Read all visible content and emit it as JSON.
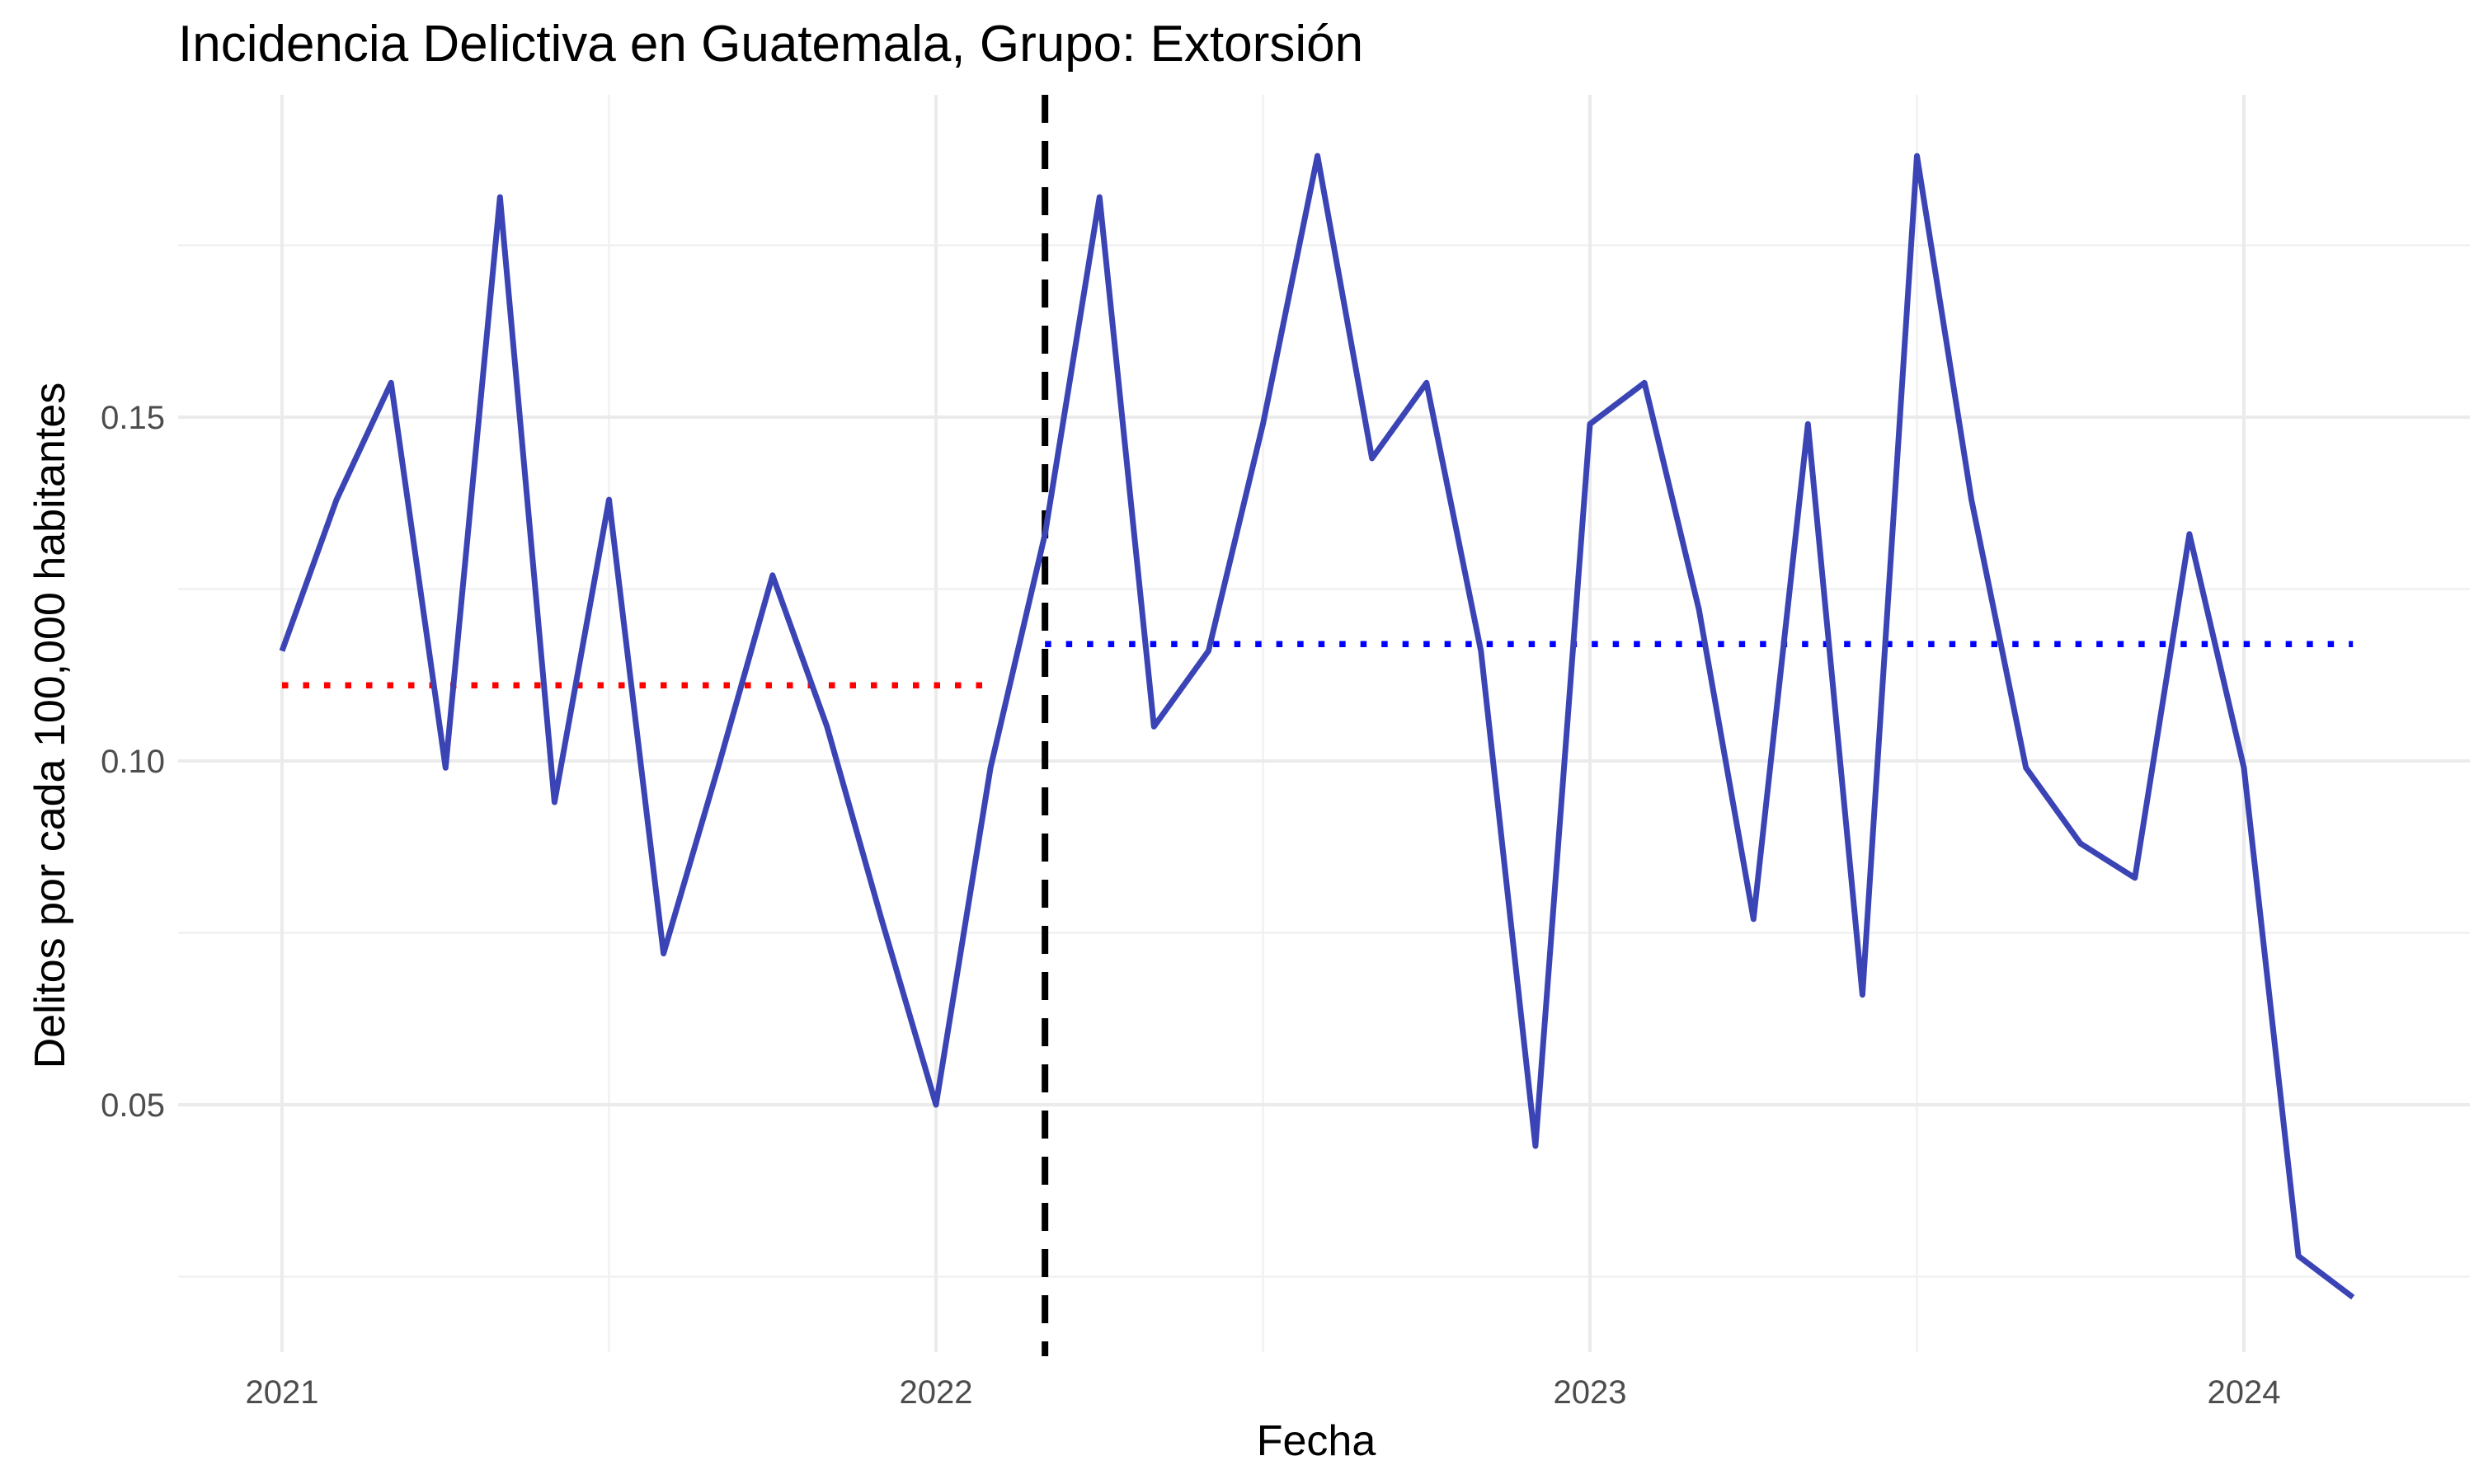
{
  "chart_data": {
    "type": "line",
    "title": "Incidencia Delictiva en Guatemala, Grupo: Extorsión",
    "xlabel": "Fecha",
    "ylabel": "Delitos por cada 100,000 habitantes",
    "x_ticks": [
      "2021",
      "2022",
      "2023",
      "2024"
    ],
    "y_ticks": [
      "0.05",
      "0.10",
      "0.15"
    ],
    "xlim": [
      "2020-10-15",
      "2024-06-15"
    ],
    "ylim": [
      0.015,
      0.2
    ],
    "grid": true,
    "legend": "none",
    "series": [
      {
        "color": "#3B44B5",
        "points": [
          {
            "x": "2021-01",
            "y": 0.116
          },
          {
            "x": "2021-02",
            "y": 0.138
          },
          {
            "x": "2021-03",
            "y": 0.155
          },
          {
            "x": "2021-04",
            "y": 0.099
          },
          {
            "x": "2021-05",
            "y": 0.182
          },
          {
            "x": "2021-06",
            "y": 0.094
          },
          {
            "x": "2021-07",
            "y": 0.138
          },
          {
            "x": "2021-08",
            "y": 0.072
          },
          {
            "x": "2021-09",
            "y": 0.099
          },
          {
            "x": "2021-10",
            "y": 0.127
          },
          {
            "x": "2021-11",
            "y": 0.105
          },
          {
            "x": "2021-12",
            "y": 0.077
          },
          {
            "x": "2022-01",
            "y": 0.05
          },
          {
            "x": "2022-02",
            "y": 0.099
          },
          {
            "x": "2022-03",
            "y": 0.133
          },
          {
            "x": "2022-04",
            "y": 0.182
          },
          {
            "x": "2022-05",
            "y": 0.105
          },
          {
            "x": "2022-06",
            "y": 0.116
          },
          {
            "x": "2022-07",
            "y": 0.149
          },
          {
            "x": "2022-08",
            "y": 0.188
          },
          {
            "x": "2022-09",
            "y": 0.144
          },
          {
            "x": "2022-10",
            "y": 0.155
          },
          {
            "x": "2022-11",
            "y": 0.116
          },
          {
            "x": "2022-12",
            "y": 0.044
          },
          {
            "x": "2023-01",
            "y": 0.149
          },
          {
            "x": "2023-02",
            "y": 0.155
          },
          {
            "x": "2023-03",
            "y": 0.122
          },
          {
            "x": "2023-04",
            "y": 0.077
          },
          {
            "x": "2023-05",
            "y": 0.149
          },
          {
            "x": "2023-06",
            "y": 0.066
          },
          {
            "x": "2023-07",
            "y": 0.188
          },
          {
            "x": "2023-08",
            "y": 0.138
          },
          {
            "x": "2023-09",
            "y": 0.099
          },
          {
            "x": "2023-10",
            "y": 0.088
          },
          {
            "x": "2023-11",
            "y": 0.083
          },
          {
            "x": "2023-12",
            "y": 0.133
          },
          {
            "x": "2024-01",
            "y": 0.099
          },
          {
            "x": "2024-02",
            "y": 0.028
          },
          {
            "x": "2024-03",
            "y": 0.022
          }
        ]
      }
    ],
    "reference_lines": [
      {
        "type": "vertical",
        "x": "2022-03",
        "style": "dashed",
        "color": "#000000"
      },
      {
        "type": "horizontal",
        "y": 0.111,
        "x_from": "2021-01",
        "x_to": "2022-02",
        "style": "dotted",
        "color": "#FF0000"
      },
      {
        "type": "horizontal",
        "y": 0.117,
        "x_from": "2022-03",
        "x_to": "2024-03",
        "style": "dotted",
        "color": "#0000FF"
      }
    ]
  }
}
